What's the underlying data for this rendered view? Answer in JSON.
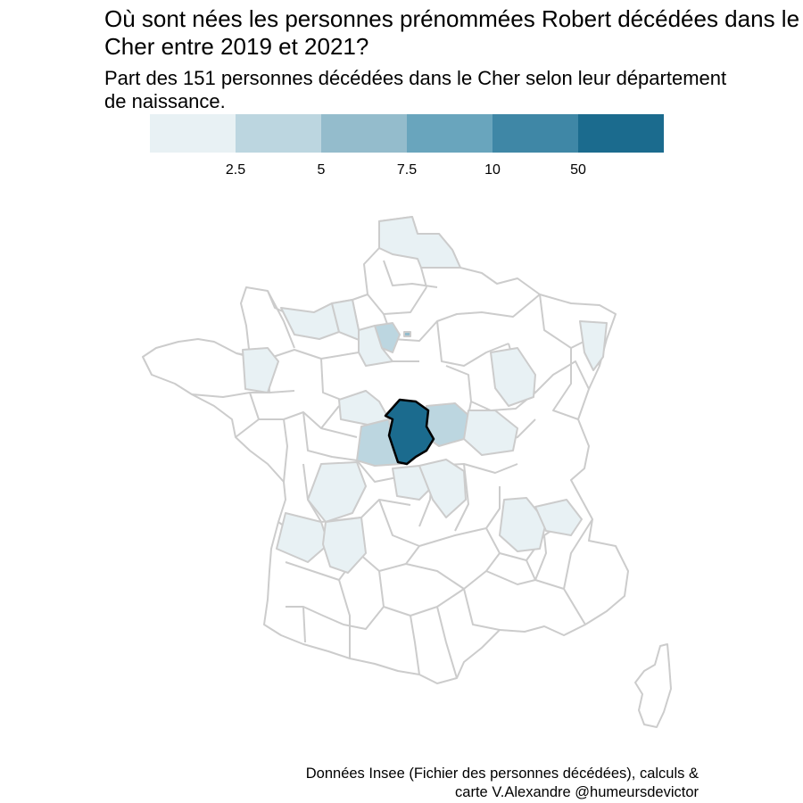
{
  "title": "Où sont nées les personnes prénommées Robert décédées dans le Cher entre 2019 et 2021?",
  "subtitle": "Part des 151 personnes décédées dans le Cher selon leur département de naissance.",
  "legend": {
    "colors": [
      "#e8f1f4",
      "#bcd6e0",
      "#94bccc",
      "#69a5bd",
      "#3f87a6",
      "#1b6b8e"
    ],
    "ticks": [
      "2.5",
      "5",
      "7.5",
      "10",
      "50"
    ]
  },
  "map": {
    "region": "France (départements)",
    "highlight_department": "Cher",
    "highlight_color": "#1b6b8e",
    "border_color": "#cccccc",
    "highlight_border_color": "#000000"
  },
  "caption": {
    "line1": "Données Insee (Fichier des personnes décédées), calculs &",
    "line2": "carte V.Alexandre @humeursdevictor"
  }
}
